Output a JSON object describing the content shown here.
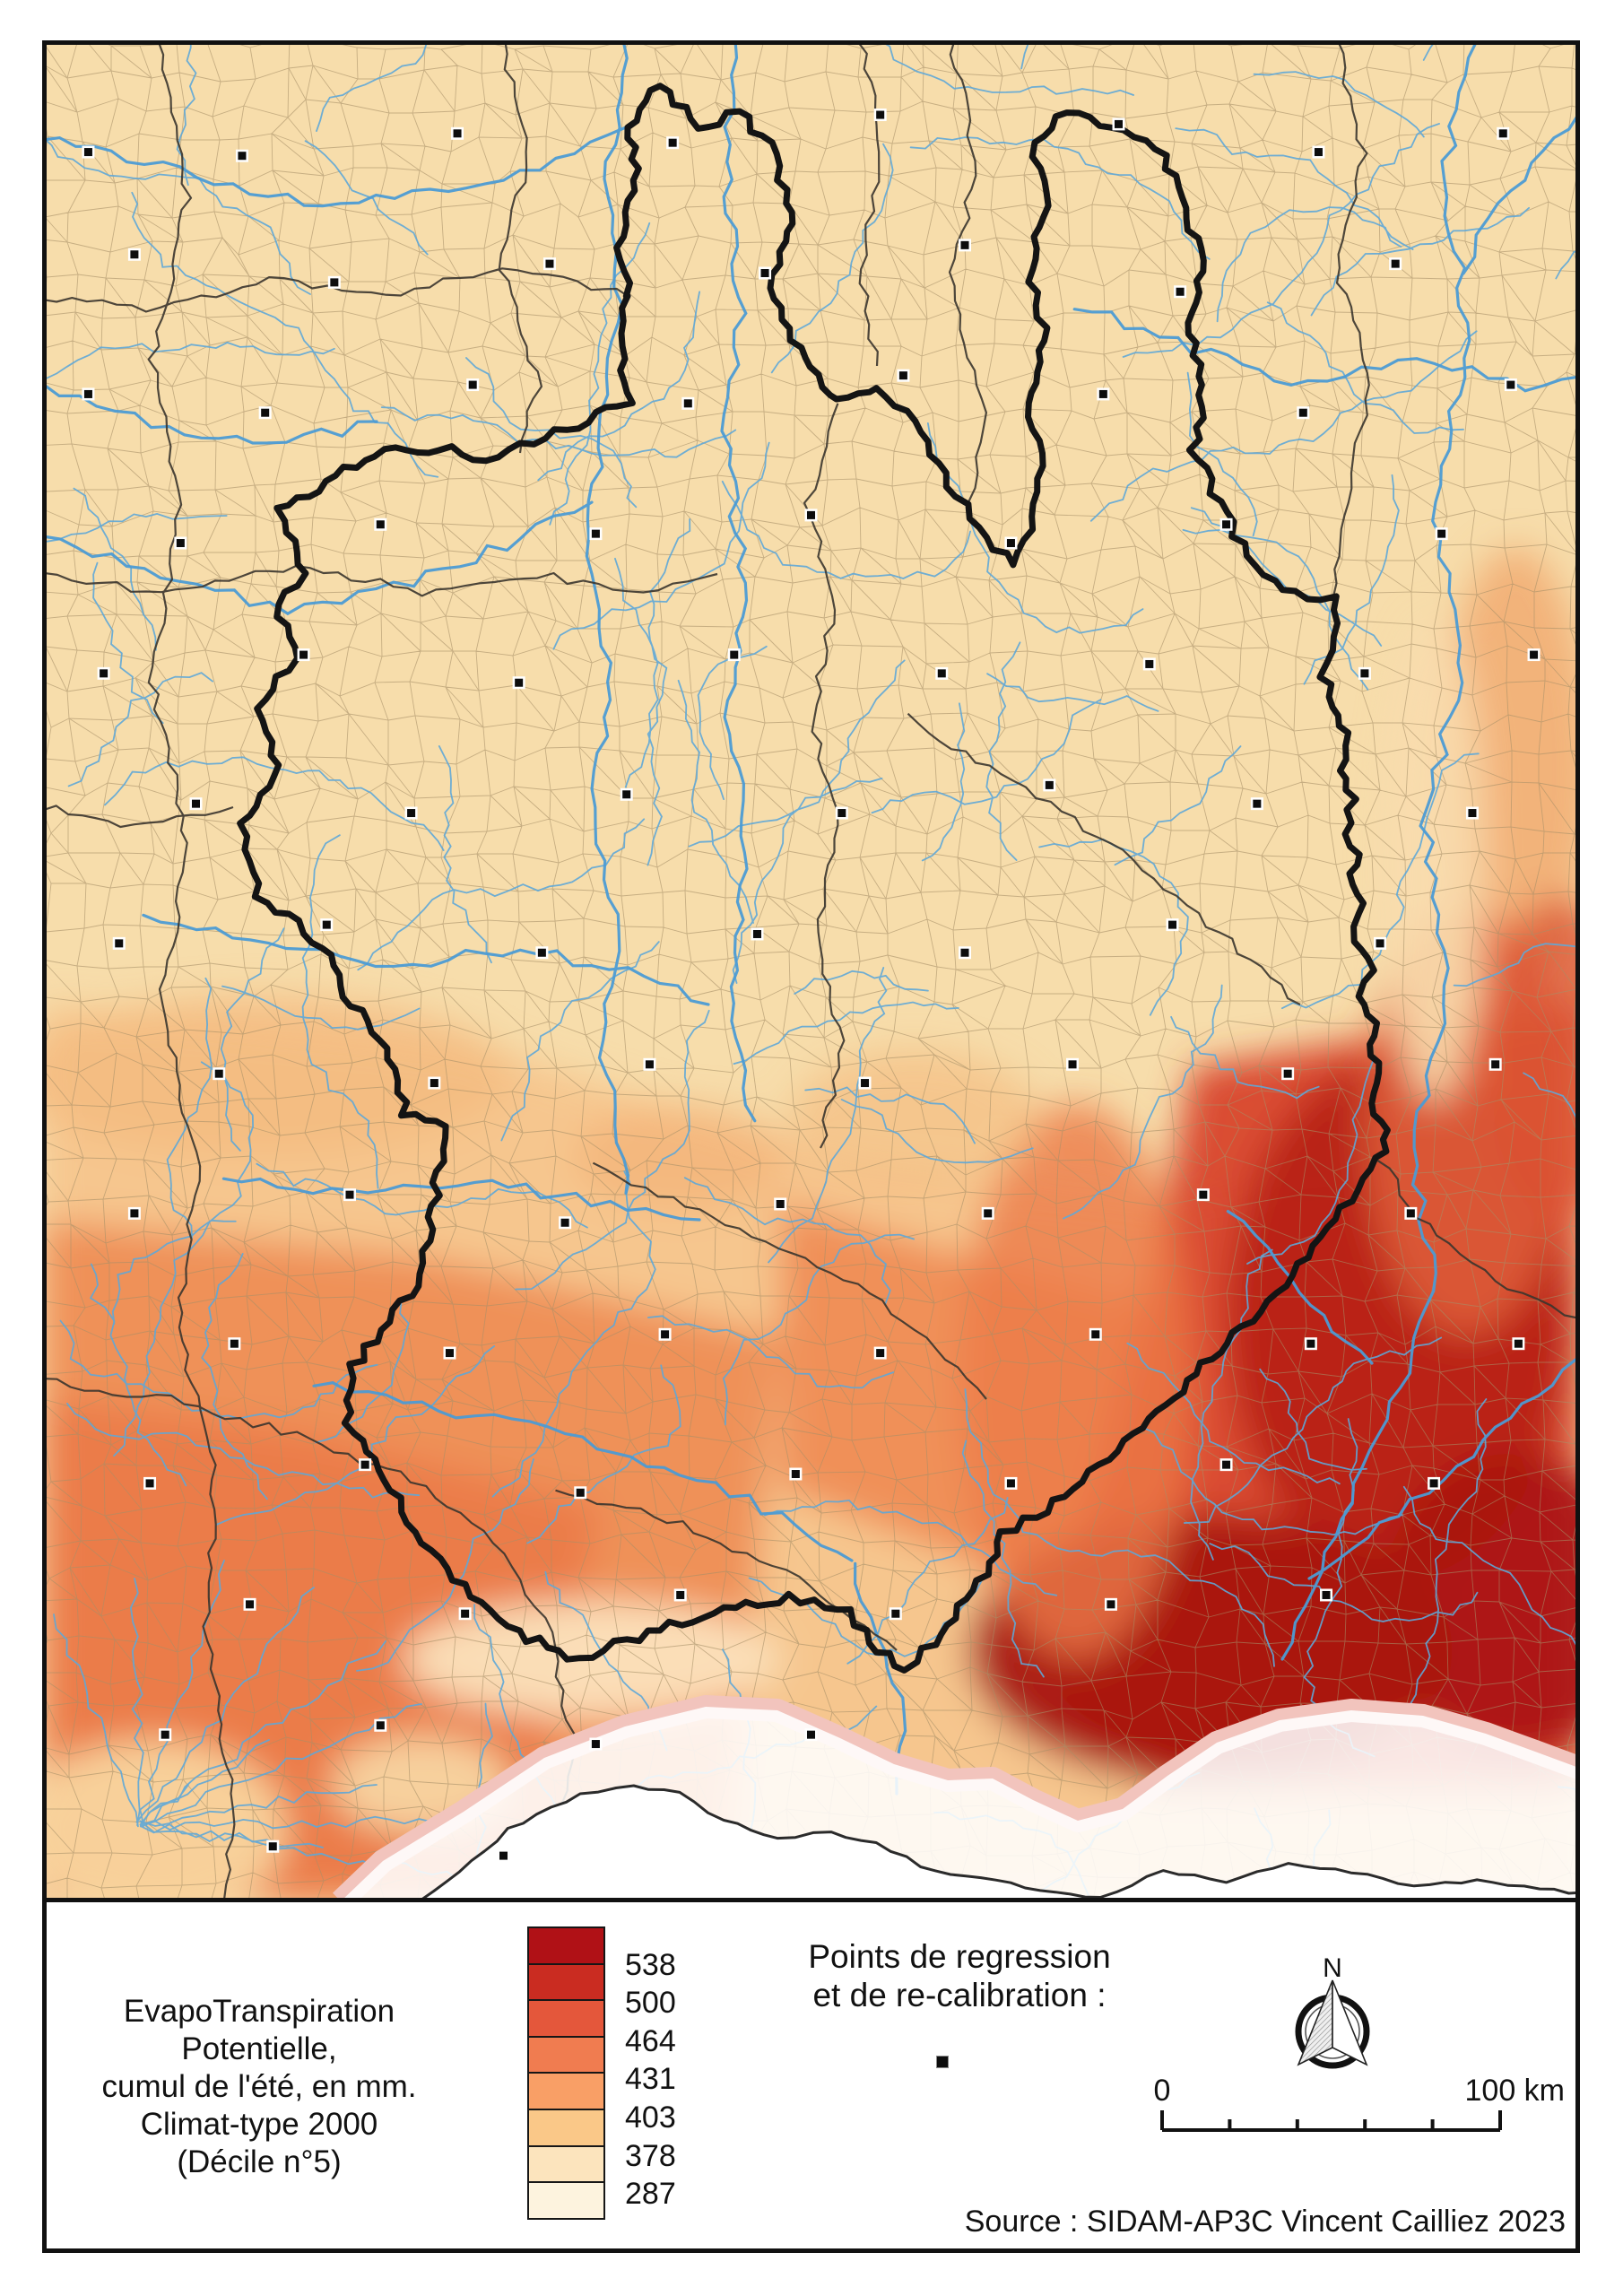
{
  "map": {
    "description": "Choropleth raster map of summer potential evapotranspiration over the Massif Central and surroundings",
    "base_color": "#f7ddab",
    "river_color": "#5fa8d8",
    "commune_line_color": "#a68f67",
    "department_line_color": "#3a352e",
    "region_boundary_color": "#141414",
    "coastline_color": "#2b2b2b",
    "data_edge_fringe_color": "#f2c4bd",
    "point_color": "#0d0d0d",
    "regression_points": [
      [
        0.03,
        0.06
      ],
      [
        0.13,
        0.062
      ],
      [
        0.27,
        0.05
      ],
      [
        0.41,
        0.055
      ],
      [
        0.545,
        0.04
      ],
      [
        0.7,
        0.045
      ],
      [
        0.83,
        0.06
      ],
      [
        0.95,
        0.05
      ],
      [
        0.06,
        0.115
      ],
      [
        0.19,
        0.13
      ],
      [
        0.33,
        0.12
      ],
      [
        0.47,
        0.125
      ],
      [
        0.6,
        0.11
      ],
      [
        0.74,
        0.135
      ],
      [
        0.88,
        0.12
      ],
      [
        0.03,
        0.19
      ],
      [
        0.145,
        0.2
      ],
      [
        0.28,
        0.185
      ],
      [
        0.42,
        0.195
      ],
      [
        0.56,
        0.18
      ],
      [
        0.69,
        0.19
      ],
      [
        0.82,
        0.2
      ],
      [
        0.955,
        0.185
      ],
      [
        0.09,
        0.27
      ],
      [
        0.22,
        0.26
      ],
      [
        0.36,
        0.265
      ],
      [
        0.5,
        0.255
      ],
      [
        0.63,
        0.27
      ],
      [
        0.77,
        0.26
      ],
      [
        0.91,
        0.265
      ],
      [
        0.04,
        0.34
      ],
      [
        0.17,
        0.33
      ],
      [
        0.31,
        0.345
      ],
      [
        0.45,
        0.33
      ],
      [
        0.585,
        0.34
      ],
      [
        0.72,
        0.335
      ],
      [
        0.86,
        0.34
      ],
      [
        0.97,
        0.33
      ],
      [
        0.1,
        0.41
      ],
      [
        0.24,
        0.415
      ],
      [
        0.38,
        0.405
      ],
      [
        0.52,
        0.415
      ],
      [
        0.655,
        0.4
      ],
      [
        0.79,
        0.41
      ],
      [
        0.93,
        0.415
      ],
      [
        0.05,
        0.485
      ],
      [
        0.185,
        0.475
      ],
      [
        0.325,
        0.49
      ],
      [
        0.465,
        0.48
      ],
      [
        0.6,
        0.49
      ],
      [
        0.735,
        0.475
      ],
      [
        0.87,
        0.485
      ],
      [
        0.115,
        0.555
      ],
      [
        0.255,
        0.56
      ],
      [
        0.395,
        0.55
      ],
      [
        0.535,
        0.56
      ],
      [
        0.67,
        0.55
      ],
      [
        0.81,
        0.555
      ],
      [
        0.945,
        0.55
      ],
      [
        0.06,
        0.63
      ],
      [
        0.2,
        0.62
      ],
      [
        0.34,
        0.635
      ],
      [
        0.48,
        0.625
      ],
      [
        0.615,
        0.63
      ],
      [
        0.755,
        0.62
      ],
      [
        0.89,
        0.63
      ],
      [
        0.125,
        0.7
      ],
      [
        0.265,
        0.705
      ],
      [
        0.405,
        0.695
      ],
      [
        0.545,
        0.705
      ],
      [
        0.685,
        0.695
      ],
      [
        0.825,
        0.7
      ],
      [
        0.96,
        0.7
      ],
      [
        0.07,
        0.775
      ],
      [
        0.21,
        0.765
      ],
      [
        0.35,
        0.78
      ],
      [
        0.49,
        0.77
      ],
      [
        0.63,
        0.775
      ],
      [
        0.77,
        0.765
      ],
      [
        0.905,
        0.775
      ],
      [
        0.135,
        0.84
      ],
      [
        0.275,
        0.845
      ],
      [
        0.415,
        0.835
      ],
      [
        0.555,
        0.845
      ],
      [
        0.695,
        0.84
      ],
      [
        0.835,
        0.835
      ],
      [
        0.08,
        0.91
      ],
      [
        0.22,
        0.905
      ],
      [
        0.36,
        0.915
      ],
      [
        0.5,
        0.91
      ],
      [
        0.15,
        0.97
      ],
      [
        0.3,
        0.975
      ]
    ]
  },
  "legend": {
    "title_lines": [
      "EvapoTranspiration Potentielle,",
      "cumul de l'été, en mm.",
      "Climat-type 2000",
      "(Décile n°5)"
    ],
    "swatch_colors": [
      "#b01116",
      "#ca2c21",
      "#e4573b",
      "#f07c50",
      "#f99f66",
      "#fac888",
      "#fce4bd",
      "#fdf3de"
    ],
    "break_labels": [
      "538",
      "500",
      "464",
      "431",
      "403",
      "378",
      "287"
    ]
  },
  "points_note": {
    "line1": "Points de regression",
    "line2": "et de re-calibration :"
  },
  "north_arrow": {
    "label": "N"
  },
  "scalebar": {
    "start_label": "0",
    "end_label": "100 km"
  },
  "source_text": "Source : SIDAM-AP3C Vincent Cailliez 2023"
}
